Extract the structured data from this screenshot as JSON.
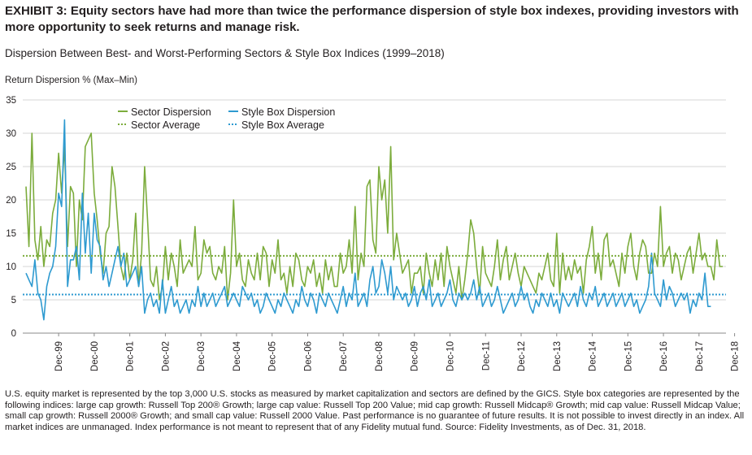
{
  "header": {
    "title": "EXHIBIT 3: Equity sectors have had more than twice the performance dispersion of style box indexes, providing investors with more opportunity to seek returns and manage risk.",
    "subtitle": "Dispersion Between Best- and Worst-Performing Sectors & Style Box Indices (1999–2018)"
  },
  "footnote": "U.S. equity market is represented by the top 3,000 U.S. stocks as measured by market capitalization and sectors are defined by the GICS. Style box categories are represented by the following indices: large cap growth: Russell Top 200® Growth; large cap value: Russell Top 200 Value; mid cap growth: Russell Midcap® Growth; mid cap value: Russell Midcap Value; small cap growth: Russell 2000® Growth; and small cap value: Russell 2000 Value. Past performance is no guarantee of future results. It is not possible to invest directly in an index. All market indices are unmanaged. Index performance is not meant to represent that of any Fidelity mutual fund. Source: Fidelity Investments, as of Dec. 31, 2018.",
  "colors": {
    "sector": "#7cac3c",
    "style": "#2e9ad0",
    "axis": "#9a9a9a"
  },
  "chart_data": {
    "type": "line",
    "ylabel": "Return Dispersion % (Max–Min)",
    "ylim": [
      0,
      35
    ],
    "yticks": [
      "0",
      "5",
      "10",
      "15",
      "20",
      "25",
      "30",
      "35"
    ],
    "xticks": [
      "Dec-99",
      "Dec-00",
      "Dec-01",
      "Dec-02",
      "Dec-03",
      "Dec-04",
      "Dec-05",
      "Dec-06",
      "Dec-07",
      "Dec-08",
      "Dec-09",
      "Dec-10",
      "Dec-11",
      "Dec-12",
      "Dec-13",
      "Dec-14",
      "Dec-15",
      "Dec-16",
      "Dec-17",
      "Dec-18"
    ],
    "legend": [
      "Sector Dispersion",
      "Style Box Dispersion",
      "Sector Average",
      "Style Box Average"
    ],
    "legend_position": "top-left",
    "start_month": "Jan-99",
    "series": [
      {
        "name": "Sector Dispersion",
        "style": "solid",
        "color": "#7cac3c",
        "values": [
          22,
          13,
          30,
          14,
          11,
          16,
          10,
          14,
          13,
          18,
          20,
          27,
          21,
          28,
          13,
          22,
          21,
          10,
          20,
          17,
          28,
          29,
          30,
          21,
          17,
          12,
          9,
          15,
          16,
          25,
          22,
          16,
          10,
          8,
          12,
          8,
          11,
          18,
          7,
          12,
          25,
          17,
          8,
          7,
          10,
          5,
          7,
          13,
          8,
          12,
          10,
          7,
          14,
          9,
          10,
          11,
          10,
          16,
          8,
          9,
          14,
          12,
          13,
          9,
          8,
          10,
          9,
          13,
          5,
          9,
          20,
          10,
          12,
          8,
          7,
          11,
          9,
          8,
          12,
          8,
          13,
          12,
          7,
          11,
          9,
          14,
          8,
          9,
          6,
          10,
          7,
          12,
          11,
          8,
          7,
          10,
          9,
          11,
          7,
          9,
          6,
          11,
          8,
          10,
          7,
          7,
          12,
          9,
          10,
          14,
          9,
          19,
          8,
          12,
          10,
          22,
          23,
          14,
          12,
          25,
          20,
          23,
          15,
          28,
          11,
          15,
          12,
          9,
          10,
          11,
          6,
          9,
          9,
          10,
          6,
          12,
          9,
          7,
          11,
          8,
          12,
          7,
          13,
          10,
          8,
          6,
          10,
          5,
          8,
          12,
          17,
          15,
          10,
          6,
          13,
          9,
          8,
          7,
          10,
          14,
          8,
          11,
          13,
          8,
          10,
          12,
          9,
          7,
          10,
          9,
          8,
          7,
          6,
          9,
          8,
          10,
          12,
          8,
          7,
          15,
          6,
          12,
          8,
          10,
          8,
          11,
          9,
          10,
          6,
          11,
          13,
          16,
          9,
          12,
          8,
          14,
          15,
          10,
          11,
          9,
          7,
          12,
          9,
          13,
          15,
          10,
          8,
          12,
          14,
          13,
          9,
          9,
          12,
          10,
          19,
          10,
          12,
          13,
          9,
          12,
          11,
          8,
          10,
          12,
          13,
          9,
          12,
          15,
          11,
          12,
          10,
          10,
          8,
          14,
          10,
          10
        ]
      },
      {
        "name": "Style Box Dispersion",
        "style": "solid",
        "color": "#2e9ad0",
        "values": [
          9,
          8,
          7,
          11,
          6,
          5,
          2,
          7,
          9,
          10,
          13,
          21,
          19,
          32,
          7,
          11,
          11,
          13,
          8,
          21,
          12,
          18,
          9,
          18,
          14,
          13,
          8,
          10,
          7,
          9,
          11,
          13,
          10,
          12,
          7,
          8,
          9,
          10,
          7,
          10,
          3,
          5,
          6,
          4,
          5,
          3,
          8,
          3,
          5,
          7,
          4,
          5,
          3,
          4,
          5,
          3,
          5,
          4,
          7,
          4,
          6,
          4,
          5,
          6,
          4,
          5,
          6,
          7,
          4,
          5,
          6,
          5,
          4,
          7,
          6,
          5,
          6,
          4,
          5,
          3,
          4,
          6,
          5,
          4,
          3,
          5,
          4,
          6,
          5,
          4,
          3,
          5,
          4,
          7,
          5,
          4,
          6,
          5,
          3,
          6,
          5,
          4,
          6,
          5,
          4,
          3,
          5,
          7,
          4,
          6,
          5,
          9,
          4,
          5,
          6,
          4,
          8,
          10,
          6,
          7,
          11,
          9,
          6,
          10,
          5,
          7,
          6,
          5,
          6,
          4,
          5,
          7,
          4,
          6,
          7,
          5,
          8,
          4,
          5,
          6,
          4,
          5,
          6,
          8,
          5,
          4,
          6,
          5,
          6,
          5,
          6,
          8,
          5,
          7,
          4,
          5,
          6,
          4,
          5,
          7,
          5,
          3,
          4,
          5,
          6,
          4,
          5,
          7,
          5,
          6,
          4,
          3,
          5,
          4,
          6,
          5,
          4,
          6,
          4,
          5,
          3,
          6,
          5,
          4,
          5,
          6,
          4,
          7,
          5,
          4,
          6,
          5,
          7,
          4,
          5,
          6,
          4,
          5,
          6,
          4,
          5,
          6,
          4,
          5,
          6,
          4,
          5,
          3,
          4,
          5,
          7,
          12,
          6,
          5,
          4,
          8,
          5,
          7,
          6,
          4,
          5,
          6,
          5,
          6,
          3,
          5,
          4,
          6,
          5,
          9,
          4,
          4
        ]
      },
      {
        "name": "Sector Average",
        "style": "dotted",
        "color": "#7cac3c",
        "value": 11.6
      },
      {
        "name": "Style Box Average",
        "style": "dotted",
        "color": "#2e9ad0",
        "value": 5.8
      }
    ]
  }
}
